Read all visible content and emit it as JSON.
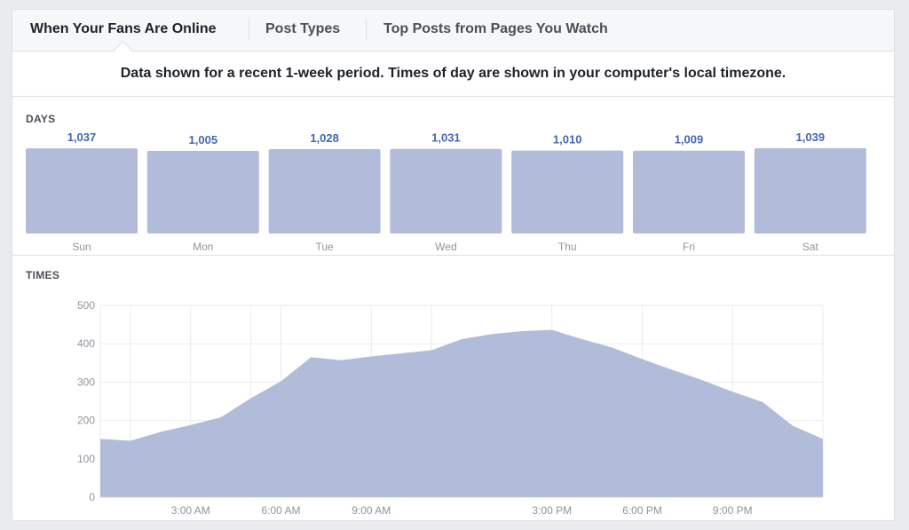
{
  "tabs": [
    {
      "label": "When Your Fans Are Online",
      "active": true
    },
    {
      "label": "Post Types",
      "active": false
    },
    {
      "label": "Top Posts from Pages You Watch",
      "active": false
    }
  ],
  "notice": "Data shown for a recent 1-week period. Times of day are shown in your computer's local timezone.",
  "colors": {
    "bar": "#b0bcd9",
    "area": "#b0bcd9",
    "value_label": "#4267b2",
    "axis_text": "#90949c",
    "grid": "#e9ebee"
  },
  "chart_data": [
    {
      "type": "bar",
      "title": "DAYS",
      "categories": [
        "Sun",
        "Mon",
        "Tue",
        "Wed",
        "Thu",
        "Fri",
        "Sat"
      ],
      "values": [
        1037,
        1005,
        1028,
        1031,
        1010,
        1009,
        1039
      ],
      "value_labels": [
        "1,037",
        "1,005",
        "1,028",
        "1,031",
        "1,010",
        "1,009",
        "1,039"
      ]
    },
    {
      "type": "area",
      "title": "TIMES",
      "x": [
        0,
        1,
        2,
        3,
        4,
        5,
        6,
        7,
        8,
        9,
        10,
        11,
        12,
        13,
        14,
        15,
        16,
        17,
        18,
        19,
        20,
        21,
        22,
        23,
        24
      ],
      "values": [
        152,
        147,
        170,
        188,
        208,
        258,
        302,
        365,
        357,
        367,
        375,
        383,
        412,
        425,
        433,
        436,
        412,
        390,
        360,
        332,
        305,
        275,
        248,
        186,
        152
      ],
      "yticks": [
        0,
        100,
        200,
        300,
        400,
        500
      ],
      "ylim": [
        0,
        500
      ],
      "xtick_positions": [
        3,
        6,
        9,
        15,
        18,
        21
      ],
      "xtick_labels": [
        "3:00 AM",
        "6:00 AM",
        "9:00 AM",
        "3:00 PM",
        "6:00 PM",
        "9:00 PM"
      ],
      "grid": true
    }
  ]
}
